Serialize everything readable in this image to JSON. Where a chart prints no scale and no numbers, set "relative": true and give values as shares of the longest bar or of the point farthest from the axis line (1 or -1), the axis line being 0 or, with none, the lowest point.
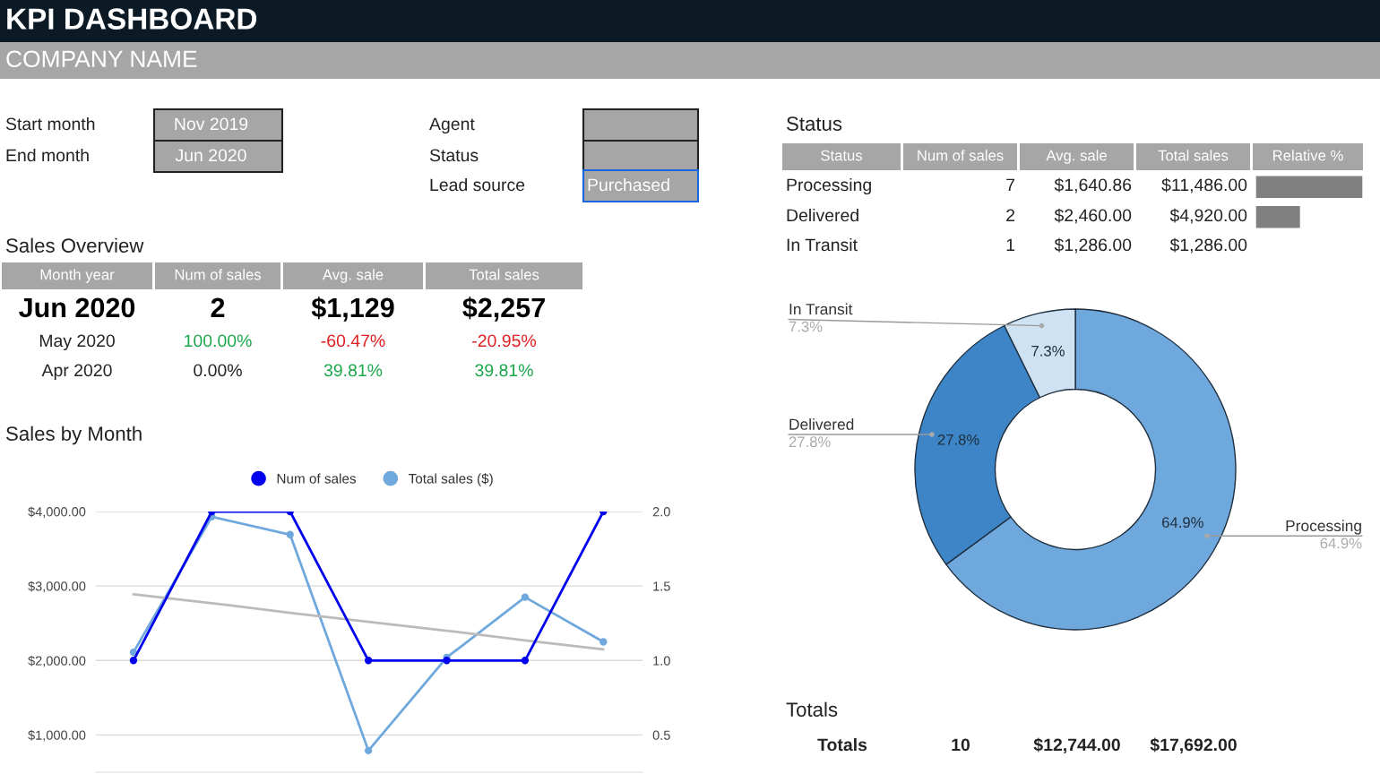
{
  "chart_data": [
    {
      "type": "other",
      "title": "KPI DASHBOARD",
      "subtitle": "COMPANY NAME",
      "annotations": [
        "Start month",
        "Nov 2019",
        "End month",
        "Jun 2020",
        "Agent",
        "Status",
        "Lead source",
        "Purchased"
      ]
    },
    {
      "type": "other",
      "title": "Sales Overview",
      "annotations": [
        "Month year",
        "Num of sales",
        "Avg. sale",
        "Total sales",
        "Jun 2020",
        "2",
        "$1,129",
        "$2,257",
        "May 2020",
        "100.00%",
        "-60.47%",
        "-20.95%",
        "Apr 2020",
        "0.00%",
        "39.81%",
        "39.81%"
      ],
      "colors": [
        "#ffffff",
        "#ffffff",
        "#ffffff",
        "#ffffff",
        "#000000",
        "#000000",
        "#000000",
        "#000000",
        "#222222",
        "#1aa64a",
        "#e02020",
        "#e02020",
        "#222222",
        "#222222",
        "#1aa64a",
        "#1aa64a"
      ]
    },
    {
      "type": "line",
      "title": "Sales by Month",
      "categories": [
        null,
        null,
        null,
        null,
        null,
        null,
        null
      ],
      "ylim": [
        500,
        4000
      ],
      "yticks": [
        {
          "value": 1000,
          "label": "$1,000.00"
        },
        {
          "value": 2000,
          "label": "$2,000.00"
        },
        {
          "value": 3000,
          "label": "$3,000.00"
        },
        {
          "value": 4000,
          "label": "$4,000.00"
        }
      ],
      "y2lim": [
        0.25,
        2.0
      ],
      "y2ticks": [
        {
          "value": 0.5,
          "label": "0.5"
        },
        {
          "value": 1.0,
          "label": "1.0"
        },
        {
          "value": 1.5,
          "label": "1.5"
        },
        {
          "value": 2.0,
          "label": "2.0"
        }
      ],
      "grid": "y",
      "legend": "top",
      "marker": "circle",
      "line_style": "solid",
      "series": [
        {
          "name": "Num of sales",
          "color": "#0000ee",
          "axis": "y2",
          "values": [
            1,
            2,
            2,
            1,
            1,
            1,
            2
          ]
        },
        {
          "name": "Total sales ($)",
          "color": "#6fa8dc",
          "values": [
            2110,
            3930,
            3690,
            790,
            2040,
            2850,
            2250
          ]
        },
        {
          "type": "line",
          "color": "#bbbbbb",
          "marker": "none",
          "values": [
            2890,
            2770,
            2640,
            2520,
            2400,
            2270,
            2150
          ]
        }
      ]
    },
    {
      "type": "other",
      "title": "Status",
      "annotations": [
        "Status",
        "Num of sales",
        "Avg. sale",
        "Total sales",
        "Relative %",
        "Processing",
        "7",
        "$1,640.86",
        "$11,486.00",
        "Delivered",
        "2",
        "$2,460.00",
        "$4,920.00",
        "In Transit",
        "1",
        "$1,286.00",
        "$1,286.00"
      ]
    },
    {
      "type": "bar",
      "orientation": "horizontal",
      "relative": true,
      "categories": [
        null,
        null
      ],
      "values": [
        1,
        0.42
      ],
      "color": "#808080"
    },
    {
      "type": "donut",
      "categories": [
        "Processing",
        "Delivered",
        "In Transit"
      ],
      "values": [
        64.9,
        27.8,
        7.3
      ],
      "value_labels": [
        "64.9%",
        "27.8%",
        "7.3%"
      ],
      "colors": [
        "#6fa8dc",
        "#3d85c6",
        "#cfe2f3"
      ]
    },
    {
      "type": "other",
      "title": "Totals",
      "annotations": [
        "Totals",
        "10",
        "$12,744.00",
        "$17,692.00"
      ]
    }
  ]
}
